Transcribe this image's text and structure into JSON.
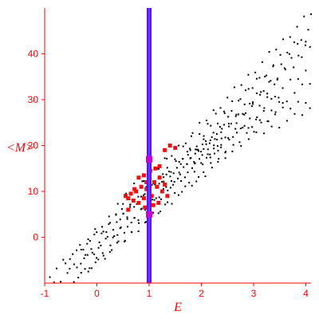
{
  "chart_data": {
    "type": "scatter",
    "title": "",
    "xlabel": "E",
    "ylabel": "<M>",
    "xlim": [
      -1,
      4.1
    ],
    "ylim": [
      -10,
      50
    ],
    "xticks": [
      -1,
      0,
      1,
      2,
      3,
      4
    ],
    "yticks": [
      0,
      10,
      20,
      30,
      40
    ],
    "grid": false,
    "colors": {
      "axis": "#ff0000",
      "points": "#000000",
      "highlight": "#ee1111",
      "vline_outer": "#7a00ff",
      "vline_inner": "#3355ff",
      "vline_marker": "#cc00cc"
    },
    "vertical_line": {
      "x": 1.0
    },
    "vline_markers": [
      {
        "x": 1.0,
        "y": 17
      },
      {
        "x": 1.0,
        "y": 5
      }
    ],
    "bands": [
      {
        "x0": -0.9,
        "x1": 2.3,
        "y0": -8,
        "y1": 22,
        "n": 26,
        "rows": 3
      },
      {
        "x0": -0.6,
        "x1": 3.4,
        "y0": -5,
        "y1": 33,
        "n": 30,
        "rows": 3
      },
      {
        "x0": -0.3,
        "x1": 4.1,
        "y0": -2,
        "y1": 49,
        "n": 34,
        "rows": 3
      },
      {
        "x0": 0.4,
        "x1": 4.0,
        "y0": 8,
        "y1": 43,
        "n": 24,
        "rows": 2
      },
      {
        "x0": 1.2,
        "x1": 4.0,
        "y0": 14,
        "y1": 36,
        "n": 20,
        "rows": 2
      },
      {
        "x0": 1.8,
        "x1": 4.0,
        "y0": 18,
        "y1": 30,
        "n": 16,
        "rows": 2
      }
    ],
    "highlight_points": [
      {
        "x": 0.55,
        "y": 9
      },
      {
        "x": 0.6,
        "y": 8.5
      },
      {
        "x": 0.65,
        "y": 9.5
      },
      {
        "x": 0.7,
        "y": 8
      },
      {
        "x": 0.75,
        "y": 10
      },
      {
        "x": 0.8,
        "y": 7.5
      },
      {
        "x": 0.85,
        "y": 11
      },
      {
        "x": 0.9,
        "y": 8.5
      },
      {
        "x": 0.95,
        "y": 12
      },
      {
        "x": 0.9,
        "y": 13.5
      },
      {
        "x": 0.95,
        "y": 10.5
      },
      {
        "x": 0.92,
        "y": 6.5
      },
      {
        "x": 1.05,
        "y": 9
      },
      {
        "x": 1.1,
        "y": 12
      },
      {
        "x": 1.12,
        "y": 15
      },
      {
        "x": 1.15,
        "y": 11
      },
      {
        "x": 1.2,
        "y": 13
      },
      {
        "x": 1.25,
        "y": 10
      },
      {
        "x": 1.3,
        "y": 11.5
      },
      {
        "x": 1.35,
        "y": 9
      },
      {
        "x": 1.02,
        "y": 14.5
      },
      {
        "x": 1.08,
        "y": 7
      },
      {
        "x": 0.8,
        "y": 13
      },
      {
        "x": 0.72,
        "y": 10.5
      },
      {
        "x": 1.2,
        "y": 15.5
      },
      {
        "x": 1.3,
        "y": 19
      },
      {
        "x": 1.4,
        "y": 20
      },
      {
        "x": 1.5,
        "y": 19.5
      },
      {
        "x": 0.6,
        "y": 6
      },
      {
        "x": 1.18,
        "y": 7.5
      }
    ]
  }
}
